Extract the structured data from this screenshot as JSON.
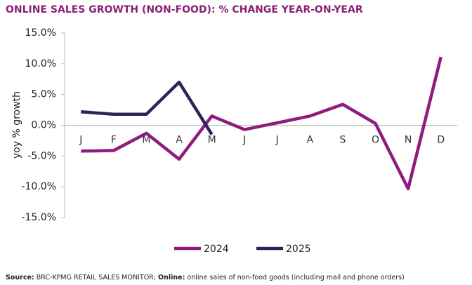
{
  "chart_data": {
    "type": "line",
    "title": "ONLINE SALES GROWTH (NON-FOOD): % CHANGE YEAR-ON-YEAR",
    "ylabel": "yoy % growth",
    "categories": [
      "J",
      "F",
      "M",
      "A",
      "M",
      "J",
      "J",
      "A",
      "S",
      "O",
      "N",
      "D"
    ],
    "series": [
      {
        "name": "2024",
        "color": "#8e1b7d",
        "values": [
          -4.2,
          -4.1,
          -1.3,
          -5.5,
          1.5,
          -0.7,
          0.4,
          1.5,
          3.4,
          0.3,
          -10.3,
          11.1
        ]
      },
      {
        "name": "2025",
        "color": "#2b2459",
        "values": [
          2.2,
          1.8,
          1.8,
          7.0,
          -1.5,
          null,
          null,
          null,
          null,
          null,
          null,
          null
        ]
      }
    ],
    "ylim": [
      -15,
      15
    ],
    "yticks": [
      {
        "value": -15,
        "label": "-15.0%"
      },
      {
        "value": -10,
        "label": "-10.0%"
      },
      {
        "value": -5,
        "label": "-5.0%"
      },
      {
        "value": 0,
        "label": "0.0%"
      },
      {
        "value": 5,
        "label": "5.0%"
      },
      {
        "value": 10,
        "label": "10.0%"
      },
      {
        "value": 15,
        "label": "15.0%"
      }
    ],
    "grid": false,
    "legend": "bottom",
    "source_label": "Source:",
    "source_text": "BRC-KPMG RETAIL SALES MONITOR;",
    "online_label": "Online:",
    "online_text": "online sales of non-food goods (including mail and phone orders)"
  }
}
